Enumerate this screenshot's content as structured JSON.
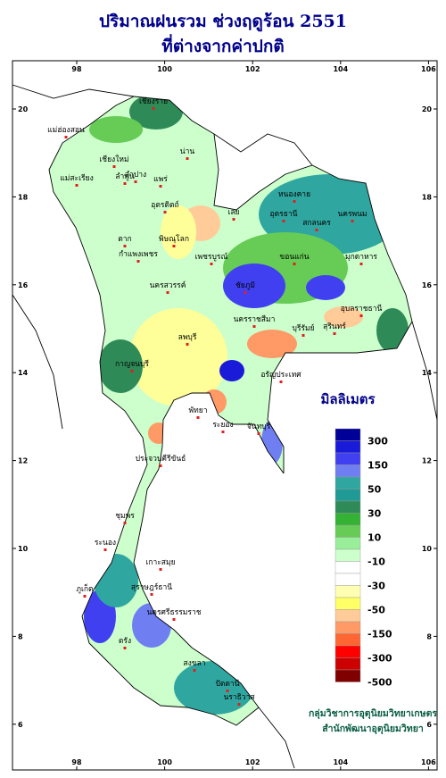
{
  "title": [
    "ปริมาณฝนรวม ช่วงฤดูร้อน 2551",
    "ที่ต่างจากค่าปกติ"
  ],
  "map": {
    "lon_ticks": [
      98,
      100,
      102,
      104,
      106
    ],
    "lat_ticks": [
      20,
      18,
      16,
      14,
      12,
      10,
      8,
      6
    ],
    "places": [
      "เชียงราย",
      "แม่ฮ่องสอน",
      "เชียงใหม่",
      "ลำพูน",
      "ลำปาง",
      "น่าน",
      "แพร่",
      "แม่สะเรียง",
      "อุตรดิตถ์",
      "ตาก",
      "พิษณุโลก",
      "กำแพงเพชร",
      "เพชรบูรณ์",
      "นครสวรรค์",
      "เลย",
      "หนองคาย",
      "อุดรธานี",
      "สกลนคร",
      "นครพนม",
      "มุกดาหาร",
      "ขอนแก่น",
      "ชัยภูมิ",
      "นครราชสีมา",
      "บุรีรัมย์",
      "สุรินทร์",
      "อุบลราชธานี",
      "ลพบุรี",
      "กาญจนบุรี",
      "อรัญประเทศ",
      "พัทยา",
      "ระยอง",
      "จันทบุรี",
      "ประจวบคีรีขันธ์",
      "ชุมพร",
      "ระนอง",
      "สุราษฎร์ธานี",
      "เกาะสมุย",
      "ภูเก็ต",
      "นครศรีธรรมราช",
      "ตรัง",
      "สงขลา",
      "ปัตตานี",
      "นราธิวาส"
    ]
  },
  "legend": {
    "title": "มิลลิเมตร",
    "labels": [
      300,
      150,
      50,
      30,
      10,
      -10,
      -30,
      -50,
      -150,
      -300,
      -500
    ],
    "colors": [
      "#000099",
      "#1a1ad9",
      "#4040f0",
      "#6f7ff2",
      "#2fa7a0",
      "#1f9a95",
      "#2e8b57",
      "#33b233",
      "#66cc55",
      "#99ee99",
      "#ccffcc",
      "#ffffff",
      "#ffffff",
      "#ffffb3",
      "#ffff66",
      "#ffcc99",
      "#ff9966",
      "#ff6633",
      "#ff0000",
      "#cc0000",
      "#800000"
    ]
  },
  "footer": [
    "กลุ่มวิชาการอุตุนิยมวิทยาเกษตร",
    "สำนักพัฒนาอุตุนิยมวิทยา"
  ]
}
